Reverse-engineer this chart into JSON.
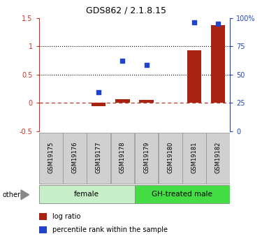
{
  "title": "GDS862 / 2.1.8.15",
  "samples": [
    "GSM19175",
    "GSM19176",
    "GSM19177",
    "GSM19178",
    "GSM19179",
    "GSM19180",
    "GSM19181",
    "GSM19182"
  ],
  "log_ratio": [
    0.0,
    0.0,
    -0.05,
    0.07,
    0.05,
    0.0,
    0.93,
    1.37
  ],
  "percentile_rank_left": [
    null,
    null,
    0.19,
    0.75,
    0.67,
    null,
    1.42,
    1.4
  ],
  "groups": [
    {
      "label": "female",
      "start": 0,
      "end": 4,
      "color": "#c8f0c8"
    },
    {
      "label": "GH-treated male",
      "start": 4,
      "end": 8,
      "color": "#44dd44"
    }
  ],
  "ylim_left": [
    -0.5,
    1.5
  ],
  "ylim_right": [
    0,
    100
  ],
  "yticks_left": [
    -0.5,
    0.0,
    0.5,
    1.0,
    1.5
  ],
  "ytick_labels_left": [
    "-0.5",
    "0",
    "0.5",
    "1",
    "1.5"
  ],
  "yticks_right": [
    0,
    25,
    50,
    75,
    100
  ],
  "ytick_labels_right": [
    "0",
    "25",
    "50",
    "75",
    "100%"
  ],
  "bar_color": "#aa2211",
  "dot_color": "#2244cc",
  "legend_bar_label": "log ratio",
  "legend_dot_label": "percentile rank within the sample",
  "other_label": "other",
  "title_fontsize": 9,
  "tick_fontsize": 7,
  "label_fontsize": 6,
  "group_fontsize": 7.5,
  "legend_fontsize": 7
}
